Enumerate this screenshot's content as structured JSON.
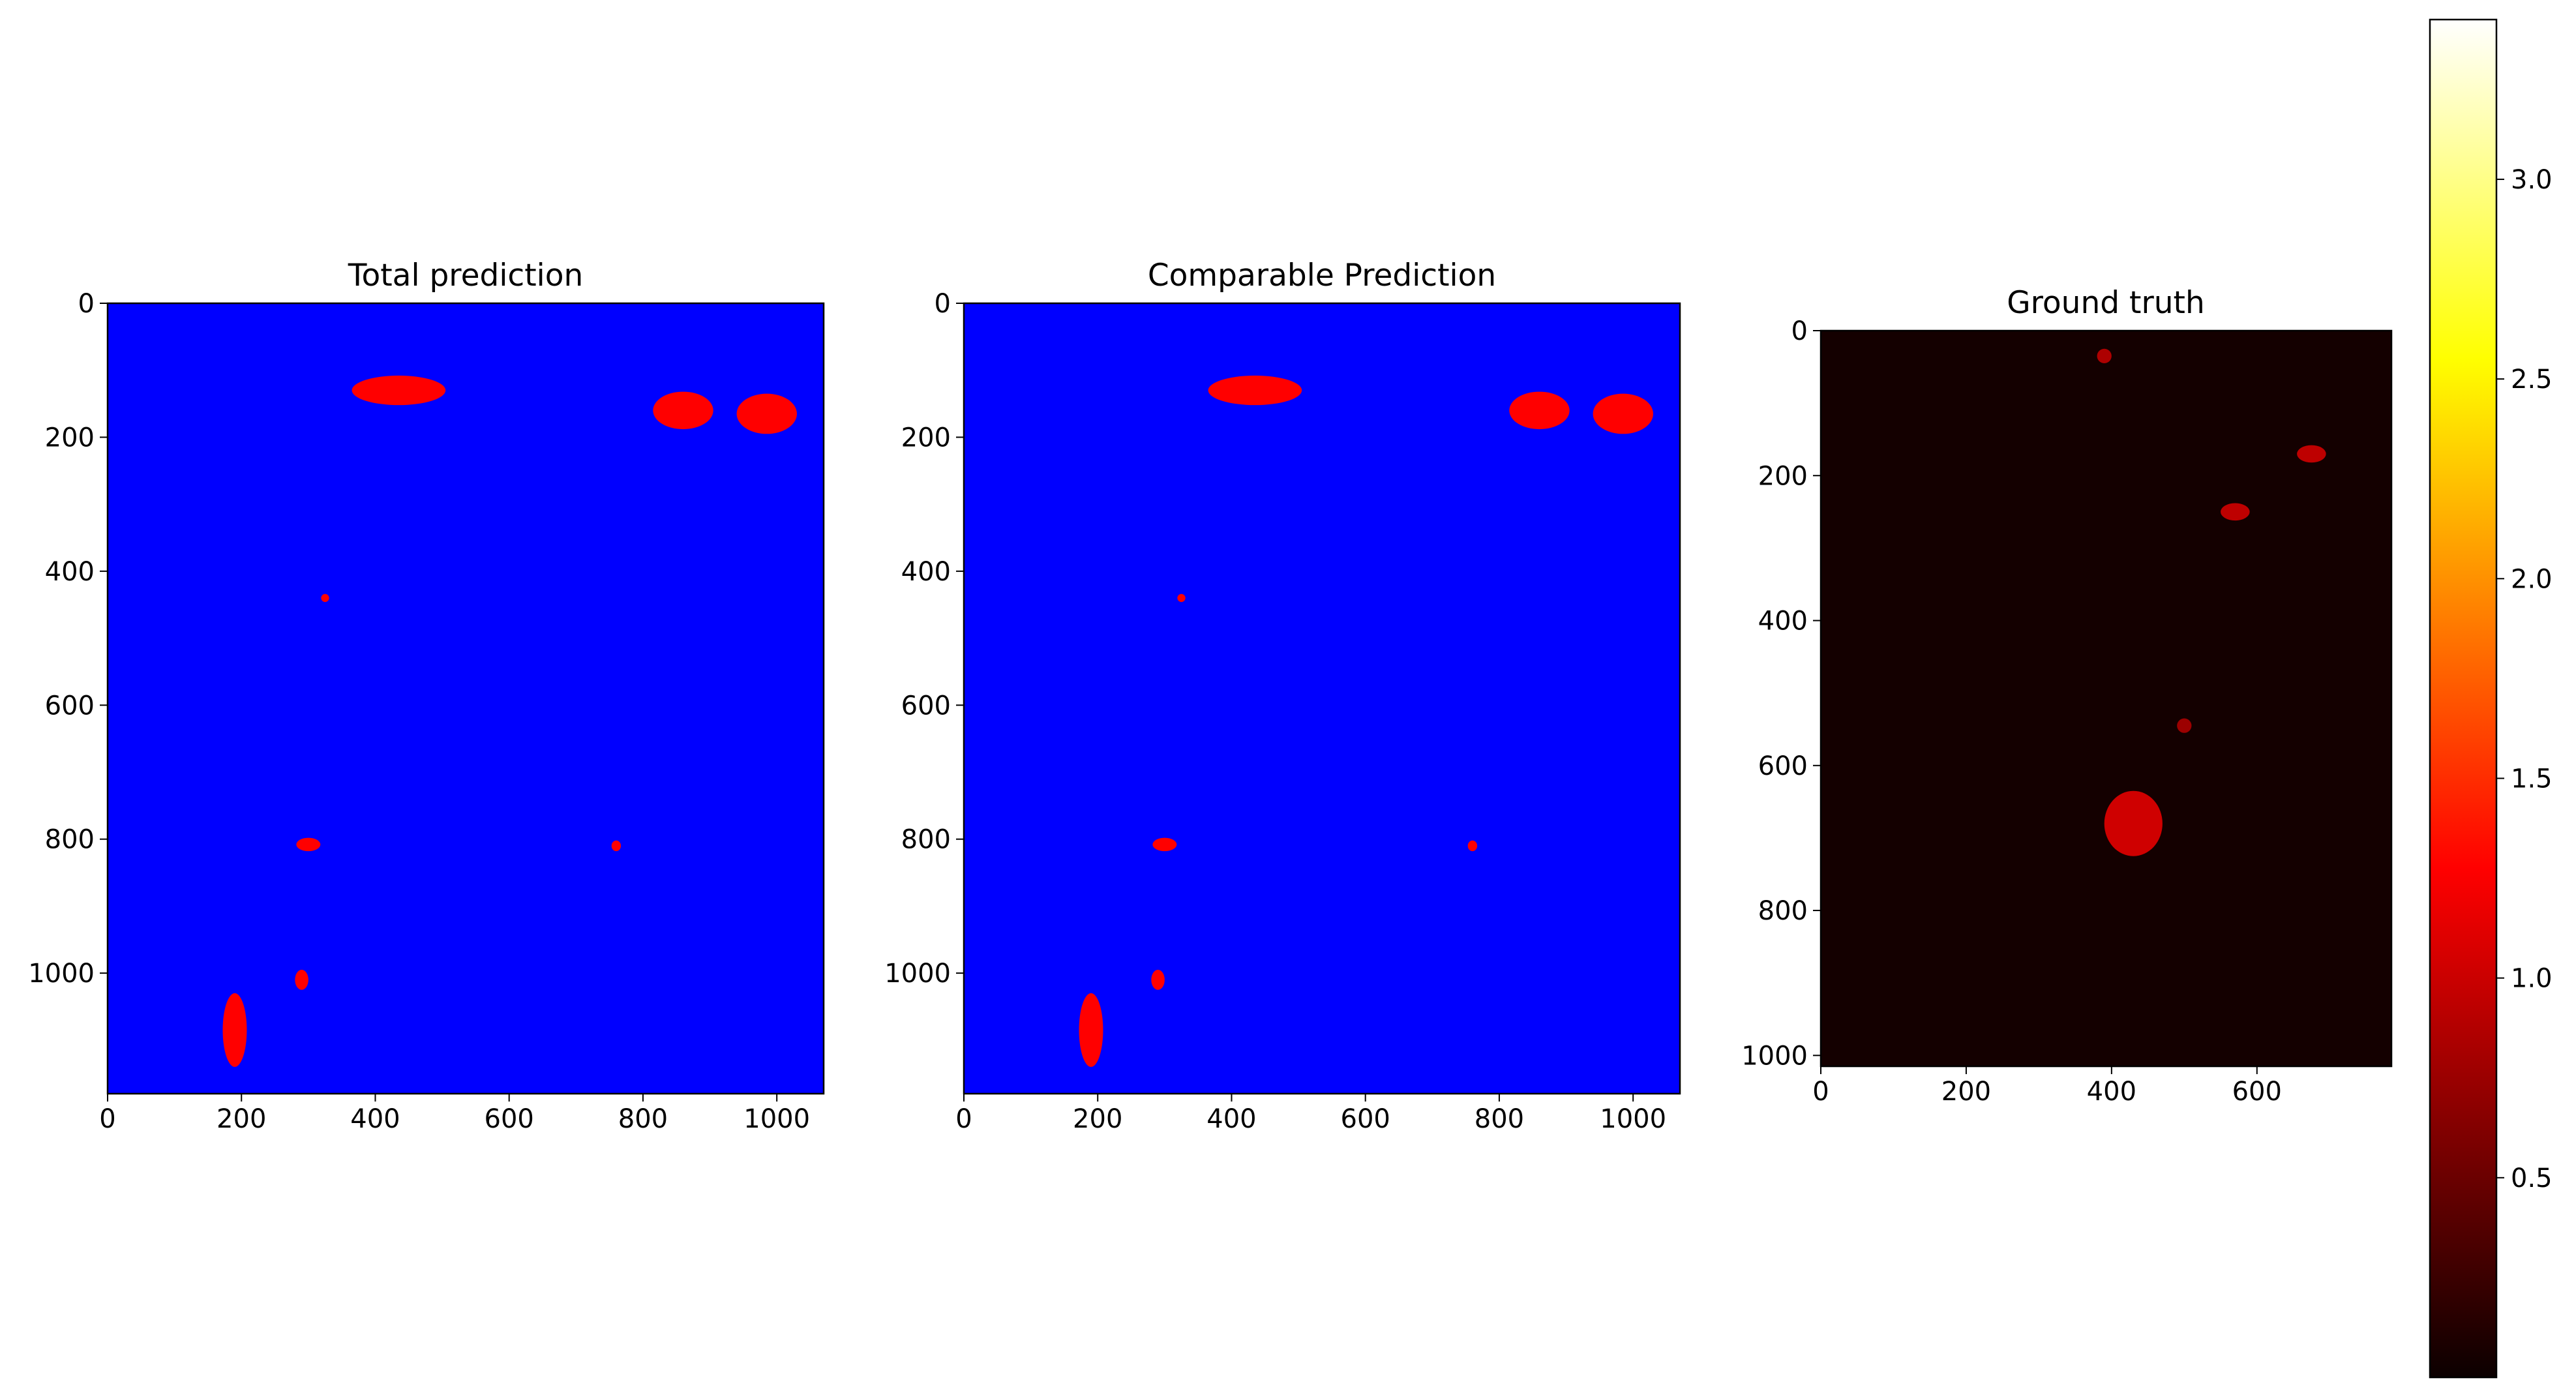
{
  "chart_data": [
    {
      "type": "heatmap",
      "title": "Total prediction",
      "xlabel": "",
      "ylabel": "",
      "xlim": [
        0,
        1070
      ],
      "ylim": [
        1180,
        0
      ],
      "x_ticks": [
        "0",
        "200",
        "400",
        "600",
        "800",
        "1000"
      ],
      "y_ticks": [
        "0",
        "200",
        "400",
        "600",
        "800",
        "1000"
      ],
      "colors": {
        "background": "#0000ff",
        "foreground": "#ff0000"
      },
      "description": "Binary mask: blue background with red detected regions",
      "regions": [
        {
          "x": 435,
          "y": 130,
          "rx": 70,
          "ry": 22
        },
        {
          "x": 860,
          "y": 160,
          "rx": 45,
          "ry": 28
        },
        {
          "x": 985,
          "y": 165,
          "rx": 45,
          "ry": 30
        },
        {
          "x": 190,
          "y": 1085,
          "rx": 18,
          "ry": 55
        },
        {
          "x": 300,
          "y": 808,
          "rx": 18,
          "ry": 10
        },
        {
          "x": 290,
          "y": 1010,
          "rx": 10,
          "ry": 15
        },
        {
          "x": 325,
          "y": 440,
          "rx": 6,
          "ry": 6
        },
        {
          "x": 760,
          "y": 810,
          "rx": 7,
          "ry": 8
        }
      ]
    },
    {
      "type": "heatmap",
      "title": "Comparable Prediction",
      "xlabel": "",
      "ylabel": "",
      "xlim": [
        0,
        1070
      ],
      "ylim": [
        1180,
        0
      ],
      "x_ticks": [
        "0",
        "200",
        "400",
        "600",
        "800",
        "1000"
      ],
      "y_ticks": [
        "0",
        "200",
        "400",
        "600",
        "800",
        "1000"
      ],
      "colors": {
        "background": "#0000ff",
        "foreground": "#ff0000"
      },
      "description": "Binary mask: blue background with red detected regions",
      "regions": [
        {
          "x": 435,
          "y": 130,
          "rx": 70,
          "ry": 22
        },
        {
          "x": 860,
          "y": 160,
          "rx": 45,
          "ry": 28
        },
        {
          "x": 985,
          "y": 165,
          "rx": 45,
          "ry": 30
        },
        {
          "x": 190,
          "y": 1085,
          "rx": 18,
          "ry": 55
        },
        {
          "x": 300,
          "y": 808,
          "rx": 18,
          "ry": 10
        },
        {
          "x": 290,
          "y": 1010,
          "rx": 10,
          "ry": 15
        },
        {
          "x": 325,
          "y": 440,
          "rx": 6,
          "ry": 6
        },
        {
          "x": 760,
          "y": 810,
          "rx": 7,
          "ry": 8
        }
      ]
    },
    {
      "type": "heatmap",
      "title": "Ground truth",
      "xlabel": "",
      "ylabel": "",
      "xlim": [
        0,
        785
      ],
      "ylim": [
        1015,
        0
      ],
      "x_ticks": [
        "0",
        "200",
        "400",
        "600"
      ],
      "y_ticks": [
        "0",
        "200",
        "400",
        "600",
        "800",
        "1000"
      ],
      "colormap": "hot",
      "description": "Dark heatmap with mostly low values and a brighter cluster around x≈420, y≈650–750",
      "hotspots": [
        {
          "x": 430,
          "y": 680,
          "rx": 40,
          "ry": 45,
          "level": 1.2
        },
        {
          "x": 570,
          "y": 250,
          "rx": 20,
          "ry": 12,
          "level": 1.1
        },
        {
          "x": 675,
          "y": 170,
          "rx": 20,
          "ry": 12,
          "level": 1.1
        },
        {
          "x": 390,
          "y": 35,
          "rx": 10,
          "ry": 10,
          "level": 1.0
        },
        {
          "x": 500,
          "y": 545,
          "rx": 10,
          "ry": 10,
          "level": 0.9
        }
      ]
    }
  ],
  "colorbar": {
    "colormap": "hot",
    "range": [
      0,
      3.4
    ],
    "ticks": [
      "0.5",
      "1.0",
      "1.5",
      "2.0",
      "2.5",
      "3.0"
    ],
    "tick_values": [
      0.5,
      1.0,
      1.5,
      2.0,
      2.5,
      3.0
    ]
  }
}
